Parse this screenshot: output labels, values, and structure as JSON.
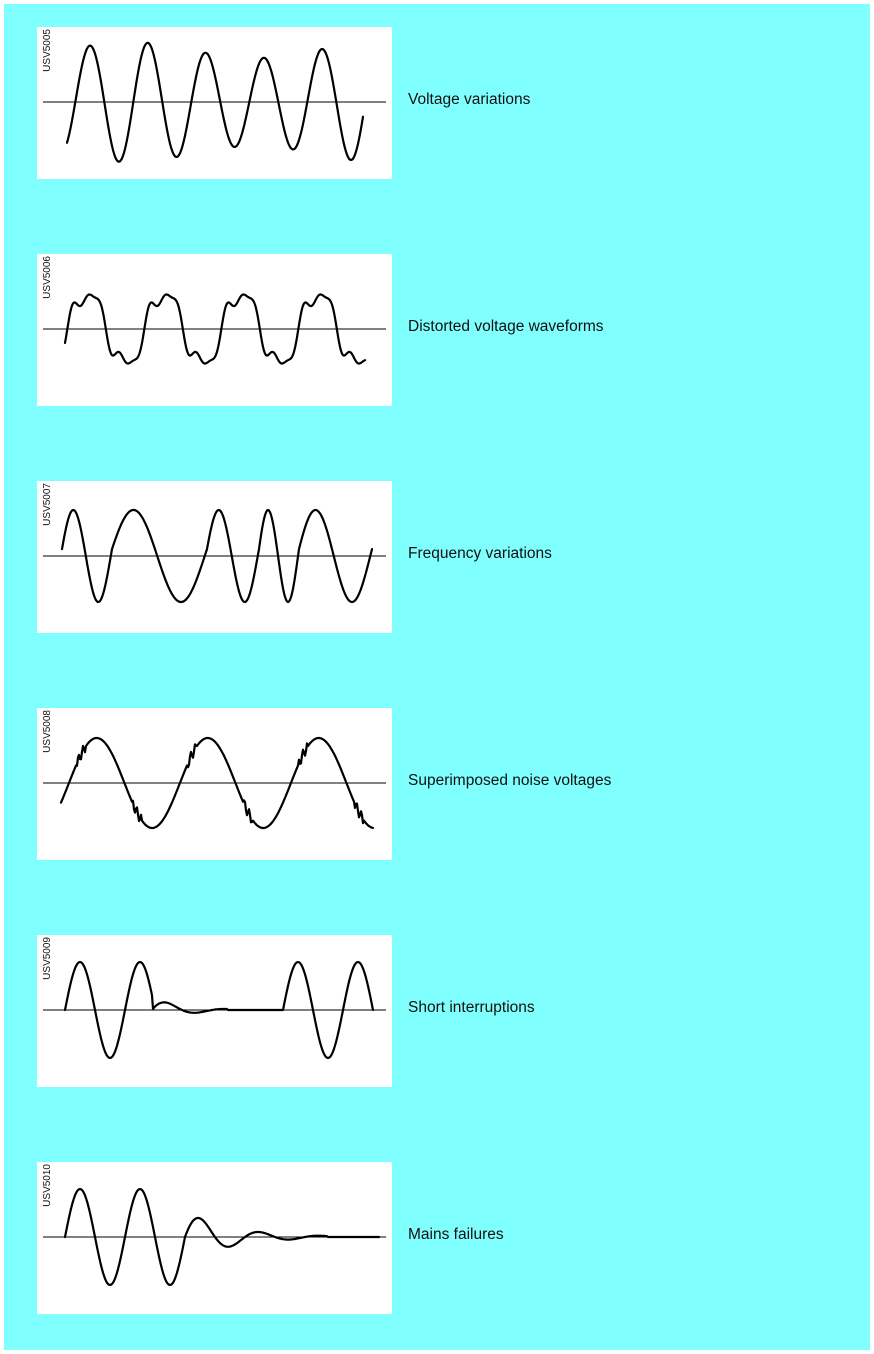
{
  "colors": {
    "background": "#80ffff",
    "card": "#ffffff",
    "trace": "#000000"
  },
  "items": [
    {
      "code": "USV5005",
      "caption": "Voltage variations"
    },
    {
      "code": "USV5006",
      "caption": "Distorted voltage waveforms"
    },
    {
      "code": "USV5007",
      "caption": "Frequency variations"
    },
    {
      "code": "USV5008",
      "caption": "Superimposed noise voltages"
    },
    {
      "code": "USV5009",
      "caption": "Short interruptions"
    },
    {
      "code": "USV5010",
      "caption": "Mains failures"
    }
  ]
}
